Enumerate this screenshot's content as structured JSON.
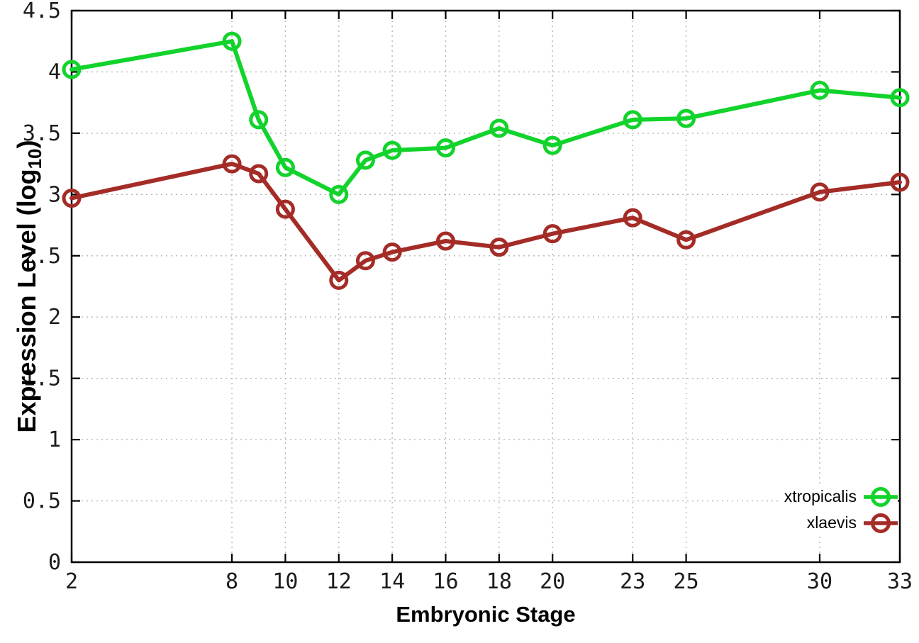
{
  "page": {
    "background": "#ffffff"
  },
  "axes": {
    "xlabel": "Embryonic Stage",
    "ylabel_prefix": "Expression Level (log",
    "ylabel_sub": "10",
    "ylabel_suffix": ")",
    "x_ticks": {
      "labels": [
        "2",
        "8",
        "10",
        "12",
        "14",
        "16",
        "18",
        "20",
        "23",
        "25",
        "30",
        "33"
      ],
      "values": [
        2,
        8,
        10,
        12,
        14,
        16,
        18,
        20,
        23,
        25,
        30,
        33
      ]
    },
    "y_ticks": {
      "labels": [
        "0",
        "0.5",
        "1",
        "1.5",
        "2",
        "2.5",
        "3",
        "3.5",
        "4",
        "4.5"
      ],
      "values": [
        0,
        0.5,
        1,
        1.5,
        2,
        2.5,
        3,
        3.5,
        4,
        4.5
      ]
    }
  },
  "chart_data": {
    "type": "line",
    "title": "",
    "x": [
      2,
      8,
      9,
      10,
      12,
      13,
      14,
      16,
      18,
      20,
      23,
      25,
      30,
      33
    ],
    "series": [
      {
        "name": "xtropicalis",
        "color": "#12d32b",
        "marker": "open-circle",
        "values": [
          4.02,
          4.25,
          3.61,
          3.22,
          3.0,
          3.28,
          3.36,
          3.38,
          3.54,
          3.4,
          3.61,
          3.62,
          3.85,
          3.79
        ]
      },
      {
        "name": "xlaevis",
        "color": "#a42c27",
        "marker": "open-circle",
        "values": [
          2.97,
          3.25,
          3.17,
          2.88,
          2.3,
          2.46,
          2.53,
          2.62,
          2.57,
          2.68,
          2.81,
          2.63,
          3.02,
          3.1
        ]
      }
    ],
    "xlabel": "Embryonic Stage",
    "ylabel": "Expression Level (log10)",
    "xlim": [
      2,
      33
    ],
    "ylim": [
      0,
      4.5
    ],
    "grid": true,
    "grid_color": "#b5b5b5",
    "axis_color": "#000000",
    "legend_position": "bottom-right-inside"
  }
}
